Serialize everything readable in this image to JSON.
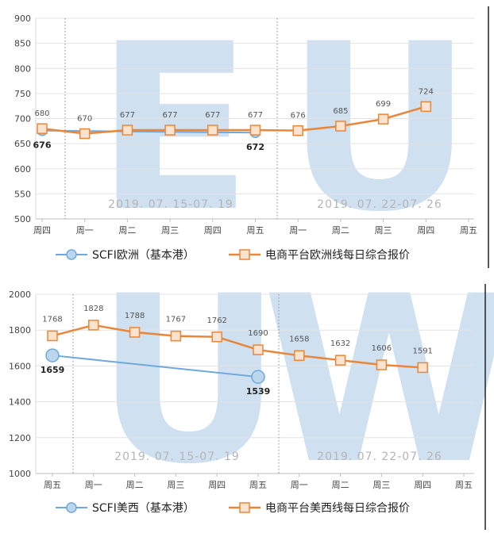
{
  "chart_data": [
    {
      "type": "line",
      "watermark": "EU",
      "categories": [
        "周四",
        "周一",
        "周二",
        "周三",
        "周四",
        "周五",
        "周一",
        "周二",
        "周三",
        "周四",
        "周五"
      ],
      "ylim": [
        500,
        900
      ],
      "yticks": [
        500,
        550,
        600,
        650,
        700,
        750,
        800,
        850,
        900
      ],
      "periods": [
        "2019. 07. 15-07. 19",
        "2019. 07. 22-07. 26"
      ],
      "series": [
        {
          "name": "SCFI欧洲（基本港）",
          "color": "#6fa8dc",
          "points": [
            {
              "x": 0,
              "y": 676
            },
            {
              "x": 5,
              "y": 672
            }
          ],
          "labels": [
            "676",
            "672"
          ]
        },
        {
          "name": "电商平台欧洲线每日综合报价",
          "color": "#e8873a",
          "values": [
            680,
            670,
            677,
            677,
            677,
            677,
            676,
            685,
            699,
            724,
            null
          ],
          "labels": [
            "680",
            "670",
            "677",
            "677",
            "677",
            "677",
            "676",
            "685",
            "699",
            "724",
            ""
          ]
        }
      ]
    },
    {
      "type": "line",
      "watermark": "UW",
      "categories": [
        "周五",
        "周一",
        "周二",
        "周三",
        "周四",
        "周五",
        "周一",
        "周二",
        "周三",
        "周四",
        "周五"
      ],
      "ylim": [
        1000,
        2000
      ],
      "yticks": [
        1000,
        1200,
        1400,
        1600,
        1800,
        2000
      ],
      "periods": [
        "2019. 07. 15-07. 19",
        "2019. 07. 22-07. 26"
      ],
      "series": [
        {
          "name": "SCFI美西（基本港）",
          "color": "#6fa8dc",
          "points": [
            {
              "x": 0,
              "y": 1659
            },
            {
              "x": 5,
              "y": 1539
            }
          ],
          "labels": [
            "1659",
            "1539"
          ]
        },
        {
          "name": "电商平台美西线每日综合报价",
          "color": "#e8873a",
          "values": [
            1768,
            1828,
            1788,
            1767,
            1762,
            1690,
            1658,
            1632,
            1606,
            1591,
            null
          ],
          "labels": [
            "1768",
            "1828",
            "1788",
            "1767",
            "1762",
            "1690",
            "1658",
            "1632",
            "1606",
            "1591",
            ""
          ]
        }
      ]
    }
  ]
}
